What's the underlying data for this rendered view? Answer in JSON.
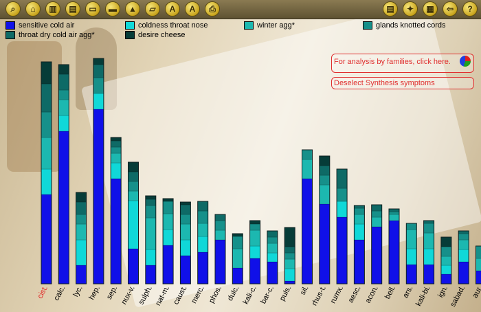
{
  "toolbar": {
    "buttons": [
      {
        "name": "search-icon",
        "glyph": "⌕"
      },
      {
        "name": "home-icon",
        "glyph": "⌂"
      },
      {
        "name": "repertory-icon",
        "glyph": "▥"
      },
      {
        "name": "document-icon",
        "glyph": "▤"
      },
      {
        "name": "book-icon",
        "glyph": "▭"
      },
      {
        "name": "card-icon",
        "glyph": "▬"
      },
      {
        "name": "graph-icon",
        "glyph": "▲"
      },
      {
        "name": "folder-icon",
        "glyph": "▱"
      },
      {
        "name": "font-icon",
        "glyph": "A"
      },
      {
        "name": "font-disabled-icon",
        "glyph": "A"
      },
      {
        "name": "print-icon",
        "glyph": "⎙"
      }
    ],
    "right_buttons": [
      {
        "name": "list-icon",
        "glyph": "▤"
      },
      {
        "name": "tools-icon",
        "glyph": "✦"
      },
      {
        "name": "calendar-icon",
        "glyph": "▦"
      },
      {
        "name": "exit-icon",
        "glyph": "⇦"
      },
      {
        "name": "help-icon",
        "glyph": "?"
      }
    ]
  },
  "legend": [
    {
      "label": "sensitive cold air",
      "color": "#1010e8"
    },
    {
      "label": "coldness throat nose",
      "color": "#10d8d8"
    },
    {
      "label": "winter agg*",
      "color": "#1cb8b0"
    },
    {
      "label": "glands knotted cords",
      "color": "#16908a"
    },
    {
      "label": "throat dry cold air agg*",
      "color": "#0e6a66"
    },
    {
      "label": "desire cheese",
      "color": "#063c38"
    }
  ],
  "links": {
    "families": "For analysis by families, click here.",
    "deselect": "Deselect Synthesis symptoms"
  },
  "chart_data": {
    "type": "bar",
    "stacked": true,
    "categories": [
      "cist.",
      "calc.",
      "lyc.",
      "hep.",
      "sep.",
      "nux-v.",
      "sulph.",
      "nat-m.",
      "caust.",
      "merc.",
      "phos.",
      "dulc.",
      "kali-c.",
      "bar-c.",
      "puls.",
      "sil.",
      "rhus-t.",
      "rumx.",
      "aesc.",
      "acon.",
      "bell.",
      "ars.",
      "kali-bi.",
      "ign.",
      "sabad.",
      "aur."
    ],
    "highlight_category": "cist.",
    "series": [
      {
        "name": "sensitive cold air",
        "color": "#1010e8",
        "values": [
          130,
          222,
          27,
          254,
          153,
          51,
          27,
          56,
          41,
          46,
          64,
          23,
          37,
          32,
          4,
          153,
          116,
          97,
          64,
          83,
          92,
          28,
          28,
          14,
          32,
          19
        ]
      },
      {
        "name": "coldness throat nose",
        "color": "#10d8d8",
        "values": [
          37,
          23,
          37,
          23,
          23,
          70,
          23,
          23,
          23,
          23,
          0,
          0,
          18,
          13,
          18,
          0,
          0,
          23,
          23,
          0,
          0,
          23,
          23,
          13,
          18,
          0
        ]
      },
      {
        "name": "winter agg*",
        "color": "#1cb8b0",
        "values": [
          46,
          23,
          23,
          0,
          14,
          14,
          46,
          23,
          23,
          19,
          14,
          28,
          23,
          14,
          14,
          28,
          28,
          0,
          14,
          14,
          9,
          28,
          23,
          13,
          14,
          18
        ]
      },
      {
        "name": "glands knotted cords",
        "color": "#16908a",
        "values": [
          37,
          14,
          14,
          23,
          9,
          14,
          18,
          18,
          14,
          18,
          14,
          18,
          9,
          9,
          9,
          14,
          14,
          19,
          9,
          9,
          4,
          9,
          14,
          14,
          9,
          18
        ]
      },
      {
        "name": "throat dry cold air agg*",
        "color": "#0e6a66",
        "values": [
          41,
          23,
          18,
          19,
          9,
          14,
          9,
          0,
          14,
          14,
          9,
          0,
          0,
          9,
          9,
          0,
          14,
          28,
          4,
          9,
          4,
          0,
          4,
          0,
          4,
          0
        ]
      },
      {
        "name": "desire cheese",
        "color": "#063c38",
        "values": [
          32,
          14,
          14,
          9,
          5,
          14,
          5,
          4,
          4,
          0,
          0,
          4,
          5,
          0,
          28,
          0,
          14,
          0,
          0,
          0,
          0,
          0,
          0,
          14,
          0,
          0
        ]
      }
    ]
  }
}
